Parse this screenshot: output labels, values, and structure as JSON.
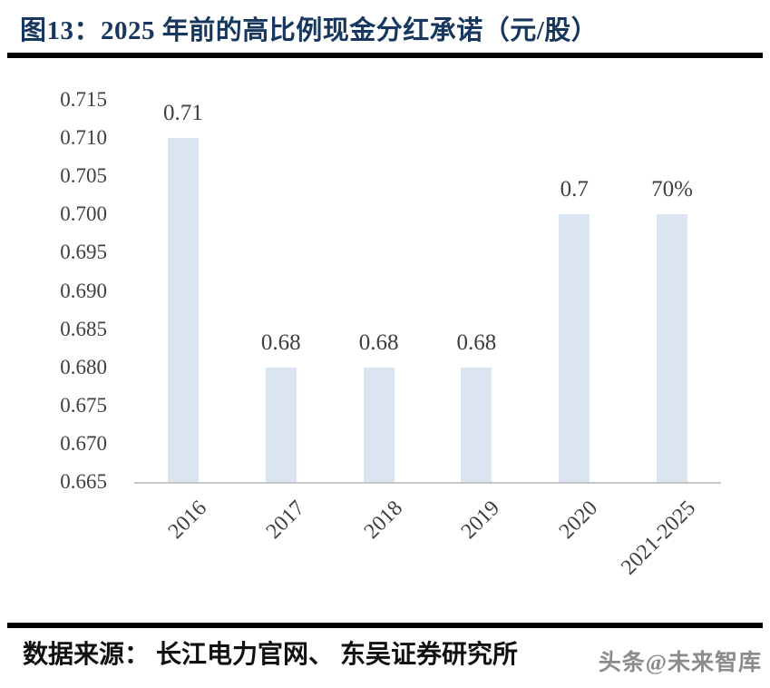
{
  "chart_data": {
    "type": "bar",
    "title": "图13：2025 年前的高比例现金分红承诺（元/股）",
    "categories": [
      "2016",
      "2017",
      "2018",
      "2019",
      "2020",
      "2021-2025"
    ],
    "values": [
      0.71,
      0.68,
      0.68,
      0.68,
      0.7,
      0.7
    ],
    "data_labels": [
      "0.71",
      "0.68",
      "0.68",
      "0.68",
      "0.7",
      "70%"
    ],
    "xlabel": "",
    "ylabel": "",
    "ylim": [
      0.665,
      0.715
    ],
    "ytick_step": 0.005,
    "yticks": [
      "0.715",
      "0.710",
      "0.705",
      "0.700",
      "0.695",
      "0.690",
      "0.685",
      "0.680",
      "0.675",
      "0.670",
      "0.665"
    ],
    "x_tick_rotation_deg": 45,
    "grid": false,
    "legend_position": "none",
    "bar_color": "#dbe5f1"
  },
  "footer": {
    "source": "数据来源： 长江电力官网、 东吴证券研究所",
    "watermark": "头条@未来智库"
  },
  "colors": {
    "title_text": "#17375e",
    "bar": "#dbe5f1",
    "axis_line": "#c6c6c6",
    "tick_text": "#3f3f3f",
    "divider": "#000000",
    "source_text": "#111111",
    "watermark_text": "#8c8c8c"
  }
}
